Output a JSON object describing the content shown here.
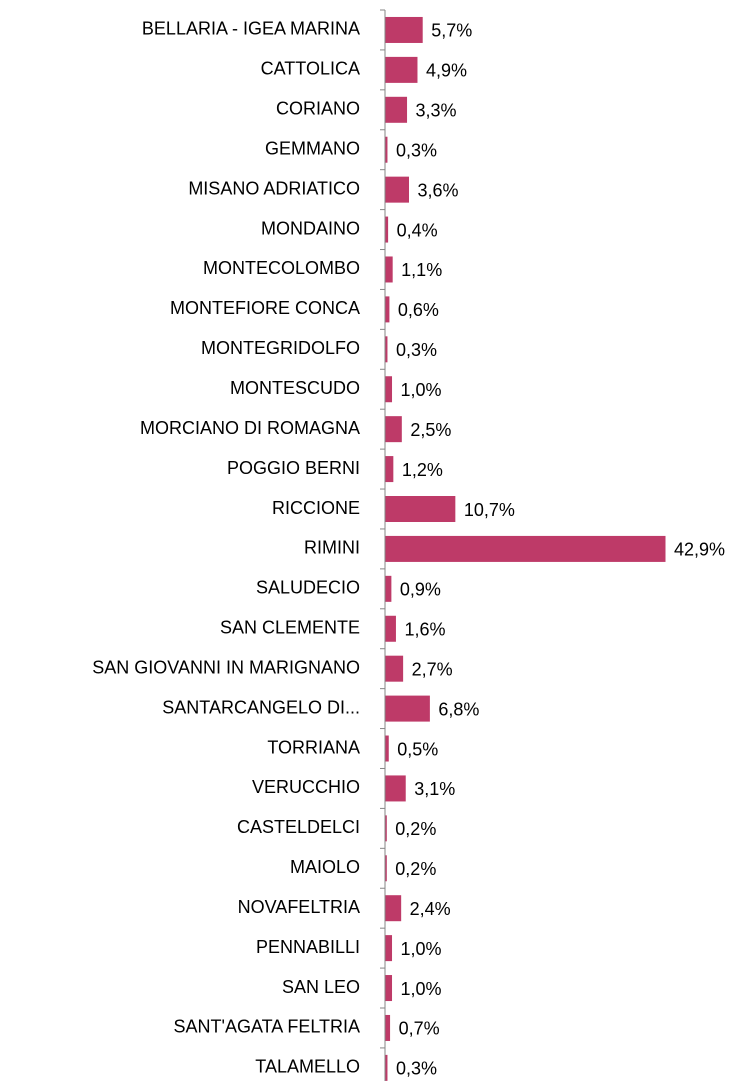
{
  "chart_data": {
    "type": "bar",
    "orientation": "horizontal",
    "color": "#be3a68",
    "categories": [
      "BELLARIA - IGEA MARINA",
      "CATTOLICA",
      "CORIANO",
      "GEMMANO",
      "MISANO ADRIATICO",
      "MONDAINO",
      "MONTECOLOMBO",
      "MONTEFIORE CONCA",
      "MONTEGRIDOLFO",
      "MONTESCUDO",
      "MORCIANO DI ROMAGNA",
      "POGGIO BERNI",
      "RICCIONE",
      "RIMINI",
      "SALUDECIO",
      "SAN CLEMENTE",
      "SAN GIOVANNI IN MARIGNANO",
      "SANTARCANGELO DI...",
      "TORRIANA",
      "VERUCCHIO",
      "CASTELDELCI",
      "MAIOLO",
      "NOVAFELTRIA",
      "PENNABILLI",
      "SAN LEO",
      "SANT'AGATA FELTRIA",
      "TALAMELLO"
    ],
    "values": [
      5.7,
      4.9,
      3.3,
      0.3,
      3.6,
      0.4,
      1.1,
      0.6,
      0.3,
      1.0,
      2.5,
      1.2,
      10.7,
      42.9,
      0.9,
      1.6,
      2.7,
      6.8,
      0.5,
      3.1,
      0.2,
      0.2,
      2.4,
      1.0,
      1.0,
      0.7,
      0.3
    ],
    "value_labels": [
      "5,7%",
      "4,9%",
      "3,3%",
      "0,3%",
      "3,6%",
      "0,4%",
      "1,1%",
      "0,6%",
      "0,3%",
      "1,0%",
      "2,5%",
      "1,2%",
      "10,7%",
      "42,9%",
      "0,9%",
      "1,6%",
      "2,7%",
      "6,8%",
      "0,5%",
      "3,1%",
      "0,2%",
      "0,2%",
      "2,4%",
      "1,0%",
      "1,0%",
      "0,7%",
      "0,3%"
    ]
  }
}
